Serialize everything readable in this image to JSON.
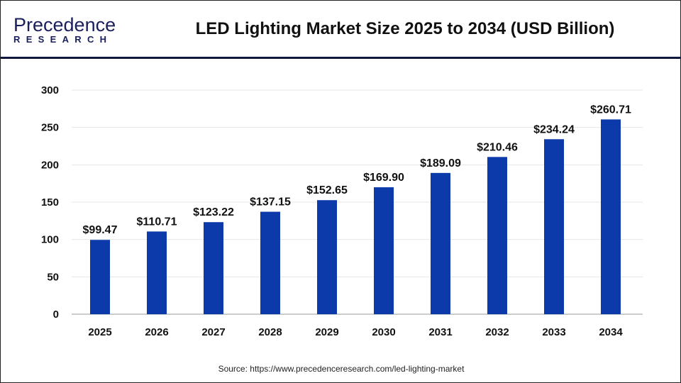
{
  "logo": {
    "line1": "Precedence",
    "line2": "RESEARCH"
  },
  "title": "LED Lighting Market Size 2025 to 2034 (USD Billion)",
  "source": "Source: https://www.precedenceresearch.com/led-lighting-market",
  "colors": {
    "bar": "#0d3aaa",
    "header_line": "#0f1640",
    "grid": "#e6e6e6"
  },
  "chart_data": {
    "type": "bar",
    "title": "LED Lighting Market Size 2025 to 2034 (USD Billion)",
    "categories": [
      "2025",
      "2026",
      "2027",
      "2028",
      "2029",
      "2030",
      "2031",
      "2032",
      "2033",
      "2034"
    ],
    "values": [
      99.47,
      110.71,
      123.22,
      137.15,
      152.65,
      169.9,
      189.09,
      210.46,
      234.24,
      260.71
    ],
    "data_labels": [
      "$99.47",
      "$110.71",
      "$123.22",
      "$137.15",
      "$152.65",
      "$169.90",
      "$189.09",
      "$210.46",
      "$234.24",
      "$260.71"
    ],
    "ylim": [
      0,
      300
    ],
    "yticks": [
      0,
      50,
      100,
      150,
      200,
      250,
      300
    ],
    "grid": true,
    "xlabel": "",
    "ylabel": ""
  }
}
